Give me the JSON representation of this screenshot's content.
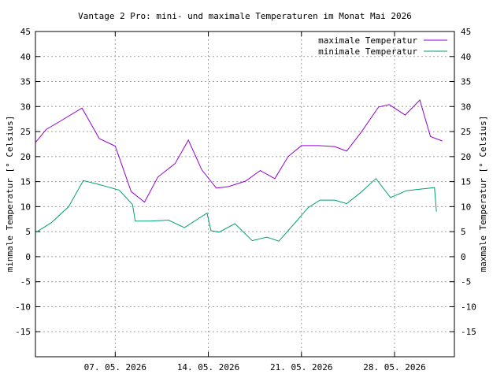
{
  "chart_data": {
    "type": "line",
    "title": "Vantage 2 Pro: mini- und maximale Temperaturen im Monat Mai 2026",
    "ylabel_left": "minmale Temperatur [° Celsius]",
    "ylabel_right": "maxmale Temperatur [° Celsius]",
    "ylim": [
      -20,
      45
    ],
    "xlim": [
      1.0,
      32.5
    ],
    "yticks": [
      -15,
      -10,
      -5,
      0,
      5,
      10,
      15,
      20,
      25,
      30,
      35,
      40,
      45
    ],
    "xticks": [
      {
        "x": 7,
        "label": "07. 05. 2026"
      },
      {
        "x": 14,
        "label": "14. 05. 2026"
      },
      {
        "x": 21,
        "label": "21. 05. 2026"
      },
      {
        "x": 28,
        "label": "28. 05. 2026"
      }
    ],
    "grid": true,
    "legend": "top-right",
    "series": [
      {
        "name": "maximale Temperatur",
        "color": "#9400d3",
        "points": [
          [
            1.0,
            22.8
          ],
          [
            1.8,
            25.4
          ],
          [
            3.0,
            27.3
          ],
          [
            4.5,
            29.7
          ],
          [
            5.8,
            23.6
          ],
          [
            7.0,
            22.1
          ],
          [
            8.2,
            13.0
          ],
          [
            9.2,
            10.9
          ],
          [
            10.2,
            15.9
          ],
          [
            11.5,
            18.6
          ],
          [
            12.5,
            23.3
          ],
          [
            13.5,
            17.4
          ],
          [
            14.6,
            13.7
          ],
          [
            15.5,
            14.0
          ],
          [
            16.8,
            15.1
          ],
          [
            17.9,
            17.2
          ],
          [
            19.0,
            15.6
          ],
          [
            20.0,
            20.0
          ],
          [
            21.0,
            22.2
          ],
          [
            22.3,
            22.2
          ],
          [
            23.5,
            22.0
          ],
          [
            24.4,
            21.1
          ],
          [
            25.5,
            24.9
          ],
          [
            26.8,
            29.9
          ],
          [
            27.6,
            30.4
          ],
          [
            28.8,
            28.3
          ],
          [
            29.9,
            31.3
          ],
          [
            30.7,
            24.0
          ],
          [
            31.6,
            23.1
          ]
        ]
      },
      {
        "name": "minimale Temperatur",
        "color": "#009e73",
        "points": [
          [
            1.0,
            4.8
          ],
          [
            2.2,
            6.8
          ],
          [
            3.5,
            10.0
          ],
          [
            4.6,
            15.2
          ],
          [
            5.8,
            14.4
          ],
          [
            7.3,
            13.3
          ],
          [
            8.3,
            10.4
          ],
          [
            8.5,
            7.1
          ],
          [
            9.6,
            7.1
          ],
          [
            11.0,
            7.3
          ],
          [
            12.2,
            5.8
          ],
          [
            13.9,
            8.7
          ],
          [
            14.2,
            5.2
          ],
          [
            14.8,
            4.9
          ],
          [
            16.0,
            6.6
          ],
          [
            17.3,
            3.2
          ],
          [
            18.4,
            3.9
          ],
          [
            19.3,
            3.1
          ],
          [
            20.7,
            7.3
          ],
          [
            21.5,
            9.8
          ],
          [
            22.4,
            11.3
          ],
          [
            23.5,
            11.3
          ],
          [
            24.4,
            10.6
          ],
          [
            25.4,
            12.7
          ],
          [
            26.6,
            15.6
          ],
          [
            27.7,
            11.8
          ],
          [
            28.9,
            13.2
          ],
          [
            30.3,
            13.6
          ],
          [
            31.0,
            13.8
          ],
          [
            31.15,
            9.0
          ]
        ]
      }
    ]
  }
}
